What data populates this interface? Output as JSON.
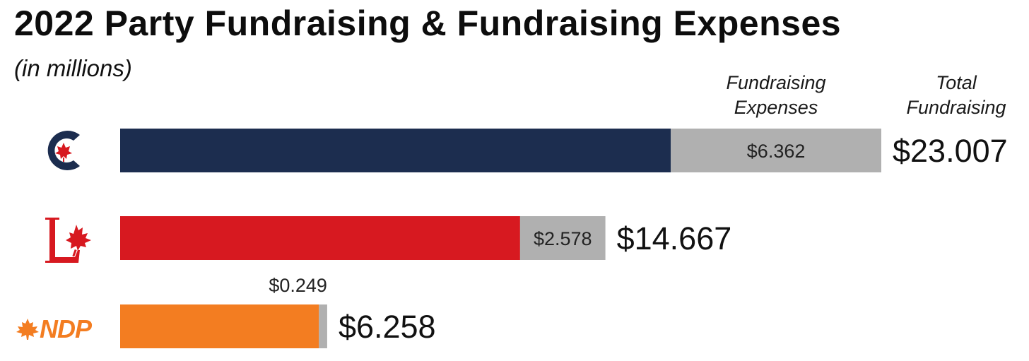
{
  "title": "2022 Party Fundraising & Fundraising Expenses",
  "subtitle": "(in millions)",
  "column_headers": {
    "expenses": [
      "Fundraising",
      "Expenses"
    ],
    "total": [
      "Total",
      "Fundraising"
    ]
  },
  "colors": {
    "expenses": "#b0b0b0",
    "conservative": "#1c2d4f",
    "liberal": "#d71920",
    "ndp": "#f37d21"
  },
  "logos": {
    "conservative": "conservative-logo-icon",
    "liberal": "liberal-logo-icon",
    "ndp": {
      "icon": "maple-leaf-icon",
      "text": "NDP"
    }
  },
  "chart_data": {
    "type": "bar",
    "orientation": "horizontal",
    "stacked": true,
    "categories": [
      "Conservative",
      "Liberal",
      "NDP"
    ],
    "series": [
      {
        "name": "Fundraising Expenses",
        "values": [
          6.362,
          2.578,
          0.249
        ],
        "labels": [
          "$6.362",
          "$2.578",
          "$0.249"
        ]
      }
    ],
    "totals": [
      23.007,
      14.667,
      6.258
    ],
    "total_labels": [
      "$23.007",
      "$14.667",
      "$6.258"
    ],
    "xlim": [
      0,
      23.007
    ],
    "legend": "top-right"
  }
}
